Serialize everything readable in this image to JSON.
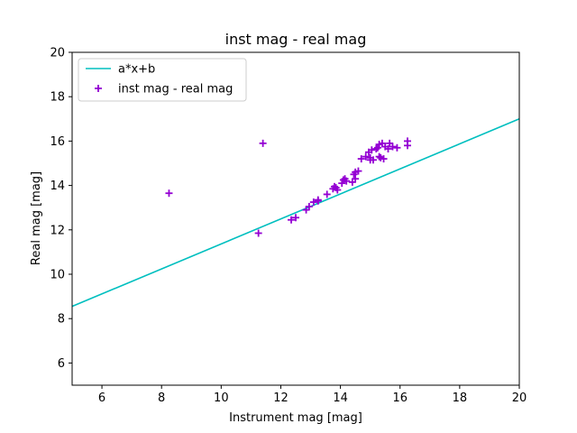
{
  "chart_data": {
    "type": "scatter",
    "title": "inst mag - real mag",
    "xlabel": "Instrument mag [mag]",
    "ylabel": "Real mag [mag]",
    "xlim": [
      5,
      20
    ],
    "ylim": [
      5,
      20
    ],
    "xticks": [
      6,
      8,
      10,
      12,
      14,
      16,
      18,
      20
    ],
    "yticks": [
      6,
      8,
      10,
      12,
      14,
      16,
      18,
      20
    ],
    "grid": false,
    "legend_position": "top-left",
    "series": [
      {
        "name": "a*x+b",
        "kind": "line",
        "color": "#00bfbf",
        "x": [
          5,
          20
        ],
        "y": [
          8.55,
          17.0
        ]
      },
      {
        "name": "inst mag - real mag",
        "kind": "scatter",
        "marker": "plus",
        "color": "#9400d3",
        "x": [
          8.25,
          11.25,
          11.4,
          12.35,
          12.5,
          12.85,
          12.95,
          13.1,
          13.25,
          13.25,
          13.55,
          13.75,
          13.8,
          13.85,
          13.9,
          14.05,
          14.1,
          14.15,
          14.2,
          14.4,
          14.45,
          14.5,
          14.5,
          14.6,
          14.7,
          14.85,
          14.95,
          15.0,
          15.0,
          15.05,
          15.1,
          15.2,
          15.25,
          15.3,
          15.3,
          15.35,
          15.4,
          15.45,
          15.5,
          15.6,
          15.65,
          15.75,
          15.9,
          16.25,
          16.25
        ],
        "y": [
          13.65,
          11.85,
          15.9,
          12.45,
          12.55,
          12.9,
          13.05,
          13.25,
          13.3,
          13.35,
          13.6,
          13.85,
          13.95,
          13.9,
          13.8,
          14.1,
          14.25,
          14.3,
          14.2,
          14.15,
          14.5,
          14.6,
          14.3,
          14.65,
          15.2,
          15.3,
          15.5,
          15.15,
          15.25,
          15.6,
          15.15,
          15.65,
          15.7,
          15.3,
          15.85,
          15.25,
          15.9,
          15.2,
          15.75,
          15.65,
          15.9,
          15.75,
          15.7,
          15.8,
          16.0
        ]
      }
    ]
  }
}
